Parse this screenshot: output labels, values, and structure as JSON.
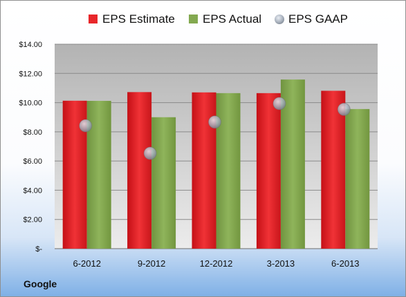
{
  "company": "Google",
  "chart_data": {
    "type": "bar",
    "categories": [
      "6-2012",
      "9-2012",
      "12-2012",
      "3-2013",
      "6-2013"
    ],
    "series": [
      {
        "name": "EPS Estimate",
        "kind": "bar",
        "color": "#e8262a",
        "values": [
          10.13,
          10.72,
          10.7,
          10.65,
          10.81
        ]
      },
      {
        "name": "EPS Actual",
        "kind": "bar",
        "color": "#83a950",
        "values": [
          10.12,
          9.0,
          10.65,
          11.58,
          9.56
        ]
      },
      {
        "name": "EPS GAAP",
        "kind": "scatter",
        "color": "#bcc6d4",
        "values": [
          8.42,
          6.53,
          8.67,
          9.94,
          9.54
        ]
      }
    ],
    "ylim": [
      0,
      14
    ],
    "yticks": [
      {
        "value": 0,
        "label": "$-"
      },
      {
        "value": 2,
        "label": "$2.00"
      },
      {
        "value": 4,
        "label": "$4.00"
      },
      {
        "value": 6,
        "label": "$6.00"
      },
      {
        "value": 8,
        "label": "$8.00"
      },
      {
        "value": 10,
        "label": "$10.00"
      },
      {
        "value": 12,
        "label": "$12.00"
      },
      {
        "value": 14,
        "label": "$14.00"
      }
    ],
    "grid": true,
    "legend": "top"
  }
}
